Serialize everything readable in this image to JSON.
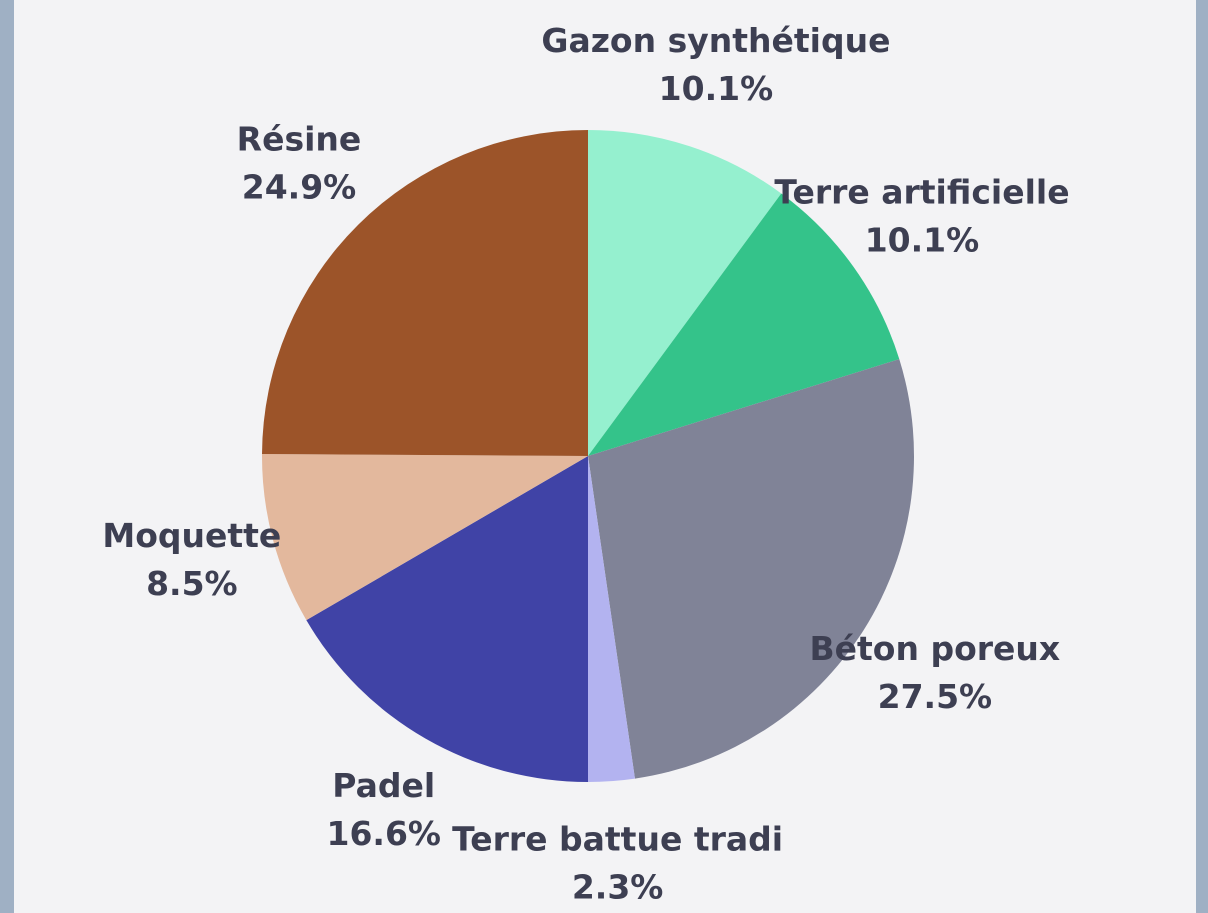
{
  "chart_data": {
    "type": "pie",
    "categories": [
      "Gazon synthétique",
      "Terre artificielle",
      "Béton poreux",
      "Terre battue tradi",
      "Padel",
      "Moquette",
      "Résine"
    ],
    "values": [
      10.1,
      10.1,
      27.5,
      2.3,
      16.6,
      8.5,
      24.9
    ],
    "value_labels": [
      "10.1%",
      "10.1%",
      "27.5%",
      "2.3%",
      "16.6%",
      "8.5%",
      "24.9%"
    ],
    "colors": [
      "#95f0cf",
      "#34c38a",
      "#808397",
      "#b3b3f0",
      "#4043a6",
      "#e3b89d",
      "#9c5429"
    ]
  }
}
